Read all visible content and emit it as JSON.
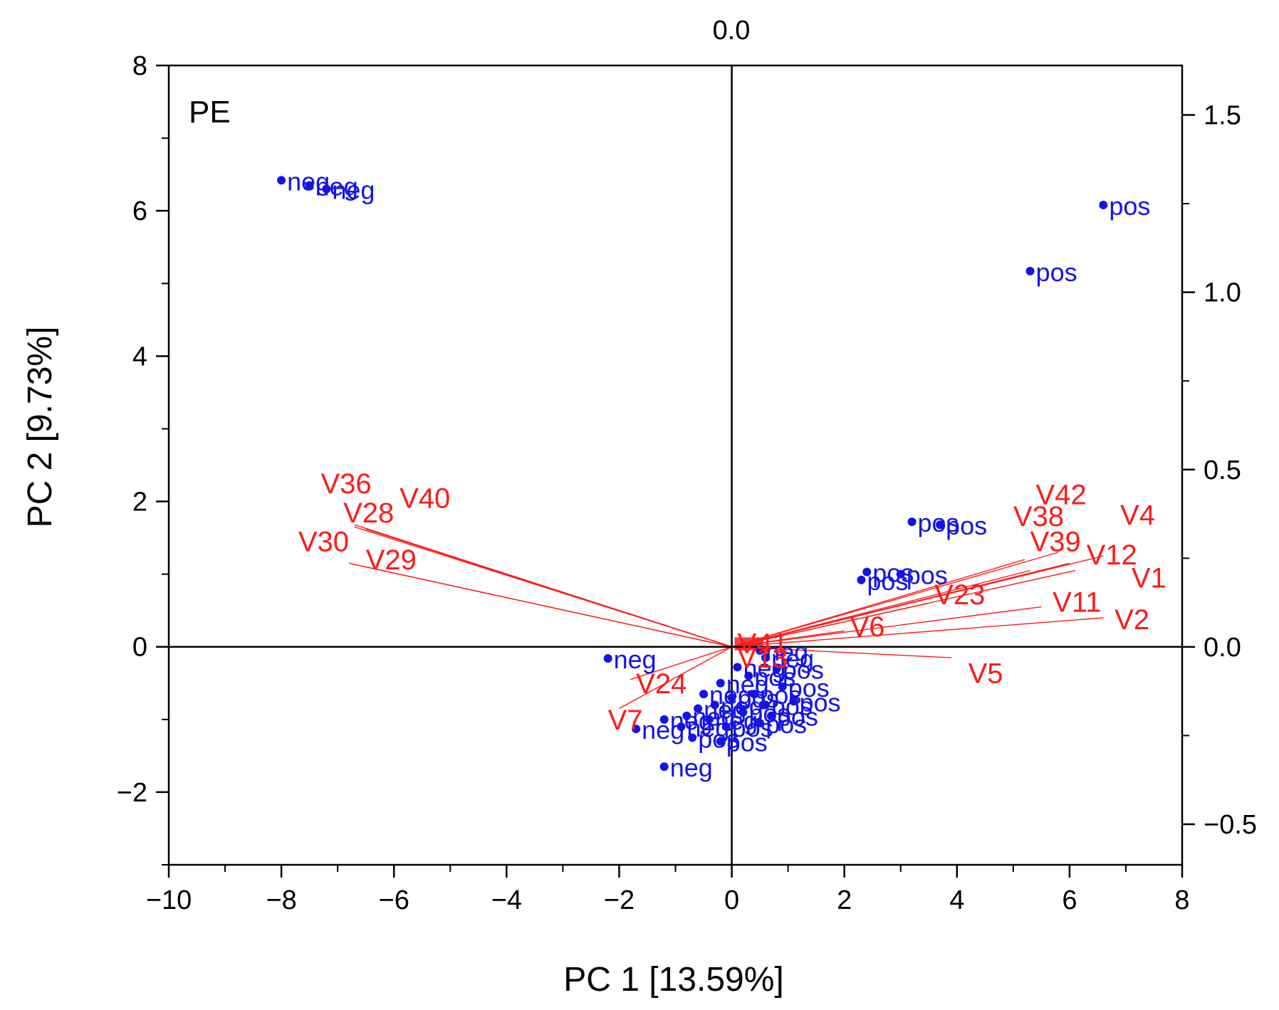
{
  "chart_data": {
    "type": "scatter",
    "subtype": "pca-biplot",
    "panel_label": "PE",
    "xlabel": "PC 1 [13.59%]",
    "ylabel": "PC 2 [9.73%]",
    "xlim": [
      -10,
      8
    ],
    "ylim": [
      -3,
      8
    ],
    "x_ticks": [
      -10,
      -8,
      -6,
      -4,
      -2,
      0,
      2,
      4,
      6,
      8
    ],
    "x_tick_labels": [
      "−10",
      "−8",
      "−6",
      "−4",
      "−2",
      "0",
      "2",
      "4",
      "6",
      "8"
    ],
    "y_ticks": [
      -2,
      0,
      2,
      4,
      6,
      8
    ],
    "y_tick_labels": [
      "−2",
      "0",
      "2",
      "4",
      "6",
      "8"
    ],
    "loading_axis": {
      "top_label": "0.0",
      "right_ylim": [
        -0.6145,
        1.6396
      ],
      "right_ticks": [
        -0.5,
        0.0,
        0.5,
        1.0,
        1.5
      ],
      "right_tick_labels": [
        "−0.5",
        "0.0",
        "0.5",
        "1.0",
        "1.5"
      ]
    },
    "colors": {
      "scores": "#1414e6",
      "loadings": "#ff1a1a",
      "axes": "#000000"
    },
    "scores": [
      {
        "x": -8.0,
        "y": 6.42,
        "label": "neg"
      },
      {
        "x": -7.5,
        "y": 6.35,
        "label": "neg"
      },
      {
        "x": -7.2,
        "y": 6.3,
        "label": "neg"
      },
      {
        "x": 6.6,
        "y": 6.08,
        "label": "pos"
      },
      {
        "x": 5.3,
        "y": 5.17,
        "label": "pos"
      },
      {
        "x": 3.2,
        "y": 1.72,
        "label": "pos"
      },
      {
        "x": 3.7,
        "y": 1.68,
        "label": "pos"
      },
      {
        "x": 2.4,
        "y": 1.03,
        "label": "pos"
      },
      {
        "x": 3.0,
        "y": 1.0,
        "label": "pos"
      },
      {
        "x": 2.3,
        "y": 0.92,
        "label": "pos"
      },
      {
        "x": -2.2,
        "y": -0.16,
        "label": "neg"
      },
      {
        "x": 0.1,
        "y": -0.28,
        "label": "neg"
      },
      {
        "x": 0.5,
        "y": -0.05,
        "label": "neg"
      },
      {
        "x": 0.6,
        "y": -0.15,
        "label": "neg"
      },
      {
        "x": 0.3,
        "y": -0.4,
        "label": "pos"
      },
      {
        "x": 0.8,
        "y": -0.3,
        "label": "pos"
      },
      {
        "x": -0.2,
        "y": -0.5,
        "label": "neg"
      },
      {
        "x": 0.9,
        "y": -0.55,
        "label": "pos"
      },
      {
        "x": -0.5,
        "y": -0.65,
        "label": "neg"
      },
      {
        "x": 0.4,
        "y": -0.65,
        "label": "pos"
      },
      {
        "x": 0.0,
        "y": -0.7,
        "label": "pos"
      },
      {
        "x": 1.1,
        "y": -0.75,
        "label": "pos"
      },
      {
        "x": -0.3,
        "y": -0.8,
        "label": "neg"
      },
      {
        "x": 0.6,
        "y": -0.8,
        "label": "pos"
      },
      {
        "x": -0.6,
        "y": -0.85,
        "label": "neg"
      },
      {
        "x": 0.2,
        "y": -0.9,
        "label": "pos"
      },
      {
        "x": -0.8,
        "y": -0.95,
        "label": "neg"
      },
      {
        "x": 0.7,
        "y": -0.95,
        "label": "pos"
      },
      {
        "x": -1.2,
        "y": -1.0,
        "label": "neg"
      },
      {
        "x": -0.4,
        "y": -1.0,
        "label": "neg"
      },
      {
        "x": 0.5,
        "y": -1.05,
        "label": "pos"
      },
      {
        "x": -1.7,
        "y": -1.13,
        "label": "neg"
      },
      {
        "x": -0.9,
        "y": -1.1,
        "label": "neg"
      },
      {
        "x": -0.1,
        "y": -1.1,
        "label": "pos"
      },
      {
        "x": -0.7,
        "y": -1.25,
        "label": "pos"
      },
      {
        "x": -0.2,
        "y": -1.3,
        "label": "pos"
      },
      {
        "x": -1.2,
        "y": -1.65,
        "label": "neg"
      }
    ],
    "loadings": [
      {
        "name": "V36",
        "x": -6.7,
        "y": 1.68,
        "label_x": -7.3,
        "label_y": 2.25
      },
      {
        "name": "V28",
        "x": -6.7,
        "y": 1.65,
        "label_x": -6.9,
        "label_y": 1.85
      },
      {
        "name": "V40",
        "x": -6.5,
        "y": 1.62,
        "label_x": -5.9,
        "label_y": 2.05
      },
      {
        "name": "V30",
        "x": -6.8,
        "y": 1.15,
        "label_x": -7.7,
        "label_y": 1.45
      },
      {
        "name": "V29",
        "x": -6.5,
        "y": 1.1,
        "label_x": -6.5,
        "label_y": 1.2
      },
      {
        "name": "V42",
        "x": 5.8,
        "y": 1.3,
        "label_x": 5.4,
        "label_y": 2.1
      },
      {
        "name": "V4",
        "x": 6.6,
        "y": 1.25,
        "label_x": 6.9,
        "label_y": 1.82
      },
      {
        "name": "V38",
        "x": 5.2,
        "y": 1.2,
        "label_x": 5.0,
        "label_y": 1.8
      },
      {
        "name": "V39",
        "x": 5.3,
        "y": 1.05,
        "label_x": 5.3,
        "label_y": 1.45
      },
      {
        "name": "V12",
        "x": 6.0,
        "y": 1.15,
        "label_x": 6.3,
        "label_y": 1.27
      },
      {
        "name": "V1",
        "x": 6.1,
        "y": 1.05,
        "label_x": 7.1,
        "label_y": 0.95
      },
      {
        "name": "V23",
        "x": 3.5,
        "y": 0.6,
        "label_x": 3.6,
        "label_y": 0.72
      },
      {
        "name": "V11",
        "x": 5.5,
        "y": 0.55,
        "label_x": 5.7,
        "label_y": 0.62
      },
      {
        "name": "V2",
        "x": 6.6,
        "y": 0.4,
        "label_x": 6.8,
        "label_y": 0.38
      },
      {
        "name": "V6",
        "x": 2.0,
        "y": 0.22,
        "label_x": 2.1,
        "label_y": 0.28
      },
      {
        "name": "V5",
        "x": 3.9,
        "y": -0.15,
        "label_x": 4.2,
        "label_y": -0.36
      },
      {
        "name": "V24",
        "x": -1.8,
        "y": -0.45,
        "label_x": -1.7,
        "label_y": -0.5
      },
      {
        "name": "V7",
        "x": -2.0,
        "y": -0.85,
        "label_x": -2.2,
        "label_y": -1.0
      },
      {
        "name": "V13",
        "x": 0.3,
        "y": -0.05,
        "label_x": 0.1,
        "label_y": -0.15
      },
      {
        "name": "V41",
        "x": 0.35,
        "y": 0.05,
        "label_x": 0.1,
        "label_y": 0.05
      }
    ],
    "legend": "none",
    "grid": false
  }
}
